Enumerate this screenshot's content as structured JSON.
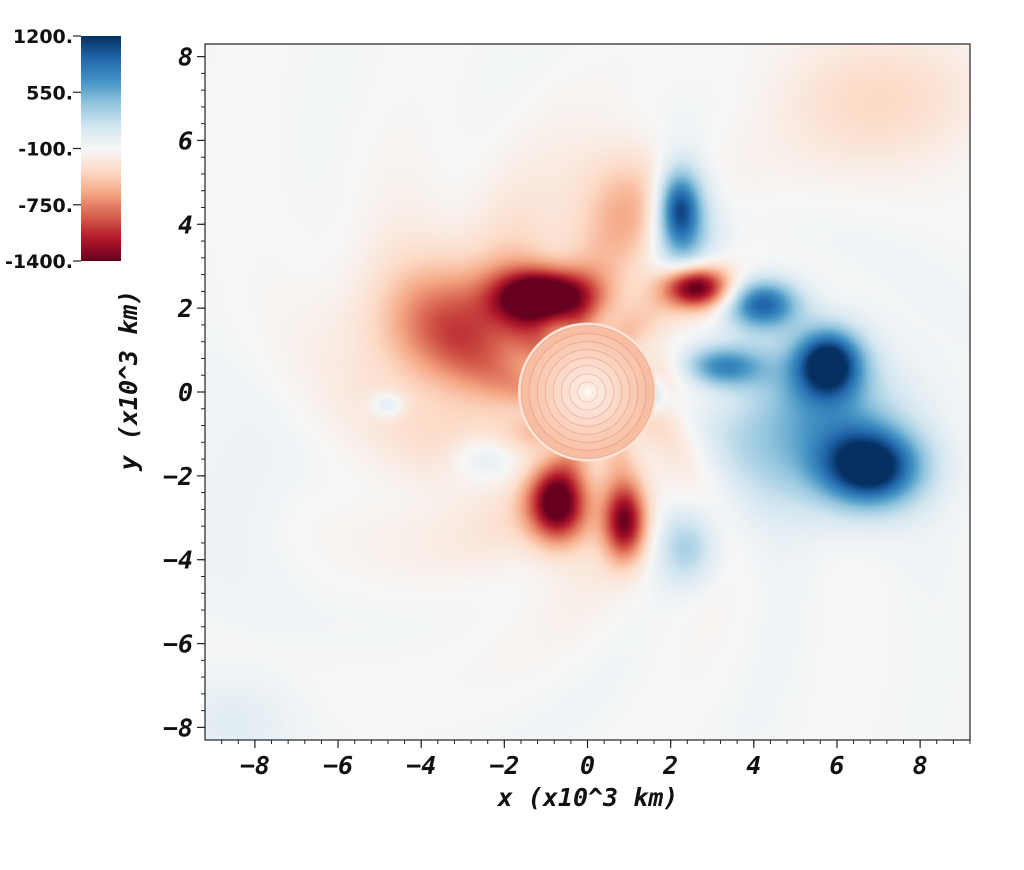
{
  "chart_data": {
    "type": "heatmap",
    "title": "",
    "xlabel": "x (x10^3 km)",
    "ylabel": "y (x10^3 km)",
    "xlim": [
      -9.2,
      9.2
    ],
    "ylim": [
      -8.3,
      8.3
    ],
    "x_ticks": [
      -8,
      -6,
      -4,
      -2,
      0,
      2,
      4,
      6,
      8
    ],
    "y_ticks": [
      -8,
      -6,
      -4,
      -2,
      0,
      2,
      4,
      6,
      8
    ],
    "x_tick_labels": [
      "−8",
      "−6",
      "−4",
      "−2",
      "0",
      "2",
      "4",
      "6",
      "8"
    ],
    "y_tick_labels": [
      "−8",
      "−6",
      "−4",
      "−2",
      "0",
      "2",
      "4",
      "6",
      "8"
    ],
    "colorbar": {
      "range": [
        -1400,
        1200
      ],
      "tick_values": [
        1200,
        550,
        -100,
        -750,
        -1400
      ],
      "tick_labels": [
        "1200.",
        "550.",
        "-100.",
        "-750.",
        "-1400."
      ],
      "colormap": [
        "#67001f",
        "#b2182b",
        "#d6604d",
        "#f4a582",
        "#fddbc7",
        "#f7f7f7",
        "#d1e5f0",
        "#92c5de",
        "#4393c3",
        "#2166ac",
        "#053061"
      ]
    },
    "background_value": -80,
    "central_disk": {
      "x": 0,
      "y": 0,
      "radius": 1.6,
      "value": -500
    },
    "features": [
      {
        "x": 6.8,
        "y": -1.8,
        "rx": 1.2,
        "ry": 0.9,
        "value": 1300
      },
      {
        "x": 5.8,
        "y": 0.7,
        "rx": 0.8,
        "ry": 0.8,
        "value": 1300
      },
      {
        "x": 4.2,
        "y": 2.1,
        "rx": 0.9,
        "ry": 0.6,
        "value": 1100
      },
      {
        "x": 5.2,
        "y": -0.8,
        "rx": 2.2,
        "ry": 1.8,
        "value": 700
      },
      {
        "x": 3.2,
        "y": 0.6,
        "rx": 1.0,
        "ry": 0.5,
        "value": 850
      },
      {
        "x": 2.2,
        "y": 4.4,
        "rx": 0.5,
        "ry": 0.9,
        "value": 950
      },
      {
        "x": 2.3,
        "y": 3.8,
        "rx": 0.8,
        "ry": 1.6,
        "value": 550
      },
      {
        "x": 2.4,
        "y": -3.7,
        "rx": 0.7,
        "ry": 0.9,
        "value": 450
      },
      {
        "x": -2.4,
        "y": -1.5,
        "rx": 0.9,
        "ry": 0.6,
        "value": 380
      },
      {
        "x": -4.8,
        "y": -0.3,
        "rx": 0.4,
        "ry": 0.3,
        "value": 320
      },
      {
        "x": 1.5,
        "y": 0.0,
        "rx": 0.3,
        "ry": 0.5,
        "value": 400
      },
      {
        "x": -1.0,
        "y": 2.3,
        "rx": 1.1,
        "ry": 0.6,
        "value": -1400
      },
      {
        "x": 2.6,
        "y": 2.5,
        "rx": 0.8,
        "ry": 0.5,
        "value": -1400
      },
      {
        "x": -0.7,
        "y": -2.7,
        "rx": 0.7,
        "ry": 0.9,
        "value": -1300
      },
      {
        "x": 0.9,
        "y": -3.1,
        "rx": 0.5,
        "ry": 0.9,
        "value": -1100
      },
      {
        "x": -3.0,
        "y": 1.6,
        "rx": 2.0,
        "ry": 1.4,
        "value": -650
      },
      {
        "x": -0.8,
        "y": 0.4,
        "rx": 4.0,
        "ry": 3.8,
        "value": -420
      },
      {
        "x": 1.0,
        "y": 4.5,
        "rx": 1.3,
        "ry": 1.4,
        "value": -380
      },
      {
        "x": 7.0,
        "y": 7.0,
        "rx": 2.5,
        "ry": 1.5,
        "value": -300
      },
      {
        "x": -8.5,
        "y": -7.8,
        "rx": 1.5,
        "ry": 1.0,
        "value": 130
      },
      {
        "x": -8.5,
        "y": -2.5,
        "rx": 1.5,
        "ry": 2.0,
        "value": 80
      }
    ]
  }
}
